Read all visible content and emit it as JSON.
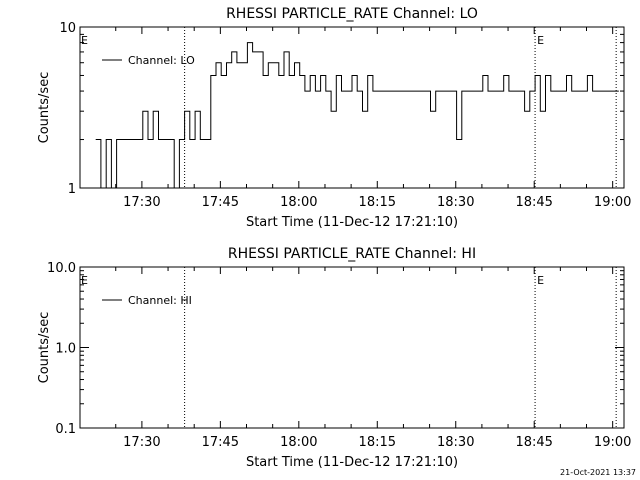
{
  "footer_stamp": "21-Oct-2021 13:37",
  "chart_data": [
    {
      "type": "line",
      "title": "RHESSI PARTICLE_RATE Channel: LO",
      "xlabel": "Start Time (11-Dec-12 17:21:10)",
      "ylabel": "Counts/sec",
      "yscale": "log",
      "ylim": [
        1,
        10
      ],
      "yticks": [
        1,
        10
      ],
      "ytick_labels": [
        "1",
        "10"
      ],
      "xlim_min": [
        -3.0,
        101.0
      ],
      "xticks_min": [
        8.8333,
        23.8333,
        38.8333,
        53.8333,
        68.8333,
        83.8333,
        98.8333
      ],
      "xtick_labels": [
        "17:30",
        "17:45",
        "18:00",
        "18:15",
        "18:30",
        "18:45",
        "19:00"
      ],
      "legend": {
        "label": "Channel: LO",
        "position": "top-left"
      },
      "event_markers": [
        {
          "x_min": 17.0,
          "label": "E"
        },
        {
          "x_min": 84.0,
          "label": "E"
        },
        {
          "x_min": 99.5,
          "label": ""
        }
      ],
      "series": [
        {
          "name": "Channel: LO",
          "x_min": [
            0,
            1,
            2,
            3,
            4,
            5,
            6,
            7,
            8,
            9,
            10,
            11,
            12,
            13,
            14,
            15,
            16,
            17,
            18,
            19,
            20,
            21,
            22,
            23,
            24,
            25,
            26,
            27,
            28,
            29,
            30,
            31,
            32,
            33,
            34,
            35,
            36,
            37,
            38,
            39,
            40,
            41,
            42,
            43,
            44,
            45,
            46,
            47,
            48,
            49,
            50,
            51,
            52,
            53,
            54,
            55,
            56,
            57,
            58,
            59,
            60,
            61,
            62,
            63,
            64,
            65,
            66,
            67,
            68,
            69,
            70,
            71,
            72,
            73,
            74,
            75,
            76,
            77,
            78,
            79,
            80,
            81,
            82,
            83,
            84,
            85,
            86,
            87,
            88,
            89,
            90,
            91,
            92,
            93,
            94,
            95,
            96,
            97,
            98,
            99
          ],
          "values": [
            2,
            1,
            2,
            1,
            2,
            2,
            2,
            2,
            2,
            3,
            2,
            3,
            2,
            2,
            2,
            1,
            2,
            3,
            2,
            3,
            2,
            2,
            5,
            6,
            5,
            6,
            7,
            6,
            6,
            8,
            7,
            7,
            5,
            6,
            6,
            5,
            7,
            5,
            6,
            5,
            4,
            5,
            4,
            5,
            4,
            3,
            5,
            4,
            4,
            5,
            4,
            3,
            5,
            4,
            4,
            4,
            4,
            4,
            4,
            4,
            4,
            4,
            4,
            4,
            3,
            4,
            4,
            4,
            4,
            2,
            4,
            4,
            4,
            4,
            5,
            4,
            4,
            4,
            5,
            4,
            4,
            4,
            3,
            4,
            5,
            3,
            5,
            4,
            4,
            4,
            5,
            4,
            4,
            4,
            5,
            4,
            4,
            4,
            4,
            4
          ]
        }
      ]
    },
    {
      "type": "line",
      "title": "RHESSI PARTICLE_RATE Channel: HI",
      "xlabel": "Start Time (11-Dec-12 17:21:10)",
      "ylabel": "Counts/sec",
      "yscale": "log",
      "ylim": [
        0.1,
        10.0
      ],
      "yticks": [
        0.1,
        1.0,
        10.0
      ],
      "ytick_labels": [
        "0.1",
        "1.0",
        "10.0"
      ],
      "xlim_min": [
        -3.0,
        101.0
      ],
      "xticks_min": [
        8.8333,
        23.8333,
        38.8333,
        53.8333,
        68.8333,
        83.8333,
        98.8333
      ],
      "xtick_labels": [
        "17:30",
        "17:45",
        "18:00",
        "18:15",
        "18:30",
        "18:45",
        "19:00"
      ],
      "legend": {
        "label": "Channel: HI",
        "position": "top-left"
      },
      "event_markers": [
        {
          "x_min": 17.0,
          "label": "E"
        },
        {
          "x_min": 84.0,
          "label": "E"
        },
        {
          "x_min": 99.5,
          "label": ""
        }
      ],
      "series": [
        {
          "name": "Channel: HI",
          "x_min": [],
          "values": []
        }
      ]
    }
  ]
}
